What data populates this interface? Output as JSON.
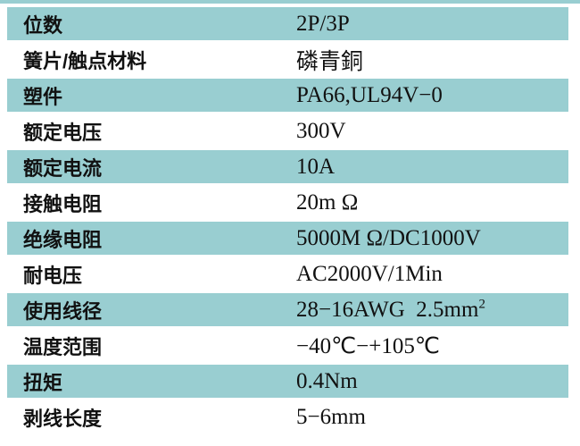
{
  "colors": {
    "accent_teal": "#99ced1",
    "text": "#111111",
    "background": "#ffffff"
  },
  "table": {
    "rows": [
      {
        "label": "位数",
        "value": "2P/3P"
      },
      {
        "label": "簧片/触点材料",
        "value": "磷青銅"
      },
      {
        "label": "塑件",
        "value": "PA66,UL94V−0"
      },
      {
        "label": "额定电压",
        "value": "300V"
      },
      {
        "label": "额定电流",
        "value": "10A"
      },
      {
        "label": "接触电阻",
        "value": "20m Ω"
      },
      {
        "label": "绝缘电阻",
        "value": "5000M Ω/DC1000V"
      },
      {
        "label": "耐电压",
        "value": "AC2000V/1Min"
      },
      {
        "label": "使用线径",
        "value": "28−16AWG  2.5mm",
        "sup": "2"
      },
      {
        "label": "温度范围",
        "value": "−40℃−+105℃"
      },
      {
        "label": "扭矩",
        "value": "0.4Nm"
      },
      {
        "label": "剥线长度",
        "value": "5−6mm"
      }
    ]
  }
}
